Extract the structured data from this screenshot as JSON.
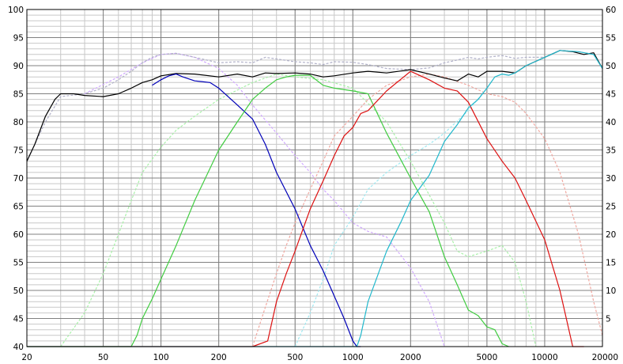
{
  "chart_data": {
    "type": "line",
    "title": "",
    "xlabel": "",
    "ylabel": "",
    "x_scale": "log",
    "xlim": [
      20,
      20000
    ],
    "ylim_left": [
      40,
      100
    ],
    "ylim_right": [
      0,
      60
    ],
    "grid": true,
    "legend": "none",
    "x_tick_labels": [
      "20",
      "50",
      "100",
      "200",
      "500",
      "1000",
      "2000",
      "5000",
      "10000",
      "20000"
    ],
    "x_tick_values": [
      20,
      50,
      100,
      200,
      500,
      1000,
      2000,
      5000,
      10000,
      20000
    ],
    "y_left_tick_labels": [
      "40",
      "45",
      "50",
      "55",
      "60",
      "65",
      "70",
      "75",
      "80",
      "85",
      "90",
      "95",
      "100"
    ],
    "y_left_tick_values": [
      40,
      45,
      50,
      55,
      60,
      65,
      70,
      75,
      80,
      85,
      90,
      95,
      100
    ],
    "y_right_tick_labels": [
      "5",
      "10",
      "15",
      "20",
      "25",
      "30",
      "35",
      "40",
      "45",
      "50",
      "55",
      "60"
    ],
    "y_right_tick_values": [
      5,
      10,
      15,
      20,
      25,
      30,
      35,
      40,
      45,
      50,
      55,
      60
    ],
    "series": [
      {
        "color": "#d0a8ff",
        "dashed": true,
        "x": [
          40,
          60,
          80,
          100,
          120,
          150,
          200,
          250,
          300,
          400,
          500,
          600,
          700,
          800,
          1000,
          1200,
          1500,
          2000,
          2500,
          3000
        ],
        "y": [
          85,
          88,
          90.5,
          92,
          92.2,
          91.5,
          89.5,
          86.5,
          83,
          78,
          74,
          71,
          68,
          66,
          62,
          60.5,
          59.5,
          54,
          48,
          40
        ]
      },
      {
        "color": "#a8f0a8",
        "dashed": true,
        "x": [
          30,
          40,
          50,
          60,
          70,
          80,
          100,
          120,
          150,
          200,
          300,
          400,
          500,
          700,
          1000,
          1500,
          2000,
          2500,
          3000,
          3500,
          4000,
          5000,
          6000,
          7000,
          8000,
          9000
        ],
        "y": [
          40,
          46,
          53,
          60,
          66,
          71,
          75.5,
          78.5,
          81,
          84,
          87,
          88.5,
          88,
          87.5,
          86,
          80,
          73,
          67,
          62,
          57,
          56,
          57,
          58,
          55,
          48,
          40
        ]
      },
      {
        "color": "#f0a8a0",
        "dashed": true,
        "x": [
          300,
          350,
          400,
          450,
          500,
          600,
          700,
          800,
          1000,
          1200,
          1500,
          2000,
          2500,
          3000,
          4000,
          5000,
          6000,
          7000,
          8000,
          10000,
          12000,
          15000,
          18000,
          20000
        ],
        "y": [
          40,
          47,
          53,
          58,
          62,
          68,
          73,
          77.5,
          81,
          84,
          86.5,
          88,
          88.5,
          88,
          86.5,
          85,
          84.5,
          83.5,
          81.5,
          77,
          71,
          60,
          48,
          42
        ]
      },
      {
        "color": "#a0e8f0",
        "dashed": true,
        "x": [
          500,
          600,
          700,
          800,
          1000,
          1200,
          1500,
          2000,
          2500,
          3000,
          4000,
          5000
        ],
        "y": [
          40,
          46,
          52,
          58,
          63,
          68,
          71,
          74,
          76,
          78,
          82,
          86
        ]
      },
      {
        "color": "#b0b0c8",
        "dashed": true,
        "x": [
          20,
          25,
          30,
          40,
          50,
          60,
          70,
          80,
          90,
          100,
          120,
          150,
          200,
          250,
          300,
          350,
          400,
          500,
          600,
          700,
          800,
          1000,
          1200,
          1500,
          2000,
          2500,
          3000,
          3500,
          4000,
          4500,
          5000,
          6000,
          7000,
          8000,
          10000,
          12000,
          15000,
          18000,
          20000
        ],
        "y": [
          73,
          80,
          84.5,
          85,
          86,
          87.5,
          89,
          90.5,
          91.5,
          92,
          92.2,
          91.5,
          90.5,
          90.7,
          90.5,
          91.5,
          91.2,
          90.7,
          90.5,
          90.2,
          90.7,
          90.6,
          90.2,
          89.5,
          89.3,
          89.6,
          90.5,
          91,
          91.5,
          91.2,
          91.5,
          91.8,
          91.3,
          91.5,
          91.5,
          92.7,
          92.5,
          92,
          89.5
        ]
      },
      {
        "color": "#000000",
        "dashed": false,
        "x": [
          20,
          22,
          25,
          28,
          30,
          35,
          40,
          50,
          60,
          70,
          80,
          90,
          100,
          120,
          150,
          200,
          250,
          300,
          350,
          400,
          500,
          600,
          700,
          800,
          1000,
          1200,
          1500,
          2000,
          2500,
          3000,
          3500,
          4000,
          4500,
          5000,
          6000,
          7000,
          8000,
          10000,
          12000,
          14000,
          16000,
          18000,
          20000
        ],
        "y": [
          73,
          76,
          81,
          84,
          85,
          85,
          84.7,
          84.5,
          85,
          86,
          87,
          87.5,
          88.2,
          88.6,
          88.5,
          88,
          88.5,
          88,
          88.7,
          88.6,
          88.7,
          88.5,
          88,
          88.2,
          88.7,
          89,
          88.7,
          89.3,
          88.5,
          87.8,
          87.3,
          88.5,
          88,
          89,
          89,
          88.7,
          90,
          91.5,
          92.7,
          92.5,
          92,
          92.3,
          89.5
        ]
      },
      {
        "color": "#0000b8",
        "dashed": false,
        "x": [
          90,
          100,
          110,
          120,
          130,
          150,
          180,
          200,
          250,
          300,
          350,
          400,
          500,
          600,
          700,
          800,
          900,
          1000,
          1050,
          1100
        ],
        "y": [
          86.5,
          87.5,
          88.2,
          88.5,
          88,
          87.3,
          87,
          86,
          83,
          80.5,
          76,
          71,
          64.5,
          58,
          53.5,
          49,
          45,
          41,
          40,
          40
        ]
      },
      {
        "color": "#40cc40",
        "dashed": false,
        "x": [
          20,
          70,
          75,
          80,
          90,
          100,
          120,
          150,
          200,
          250,
          300,
          350,
          400,
          450,
          500,
          600,
          700,
          800,
          1000,
          1200,
          1500,
          2000,
          2500,
          3000,
          3500,
          4000,
          4500,
          5000,
          5500,
          6000,
          6500
        ],
        "y": [
          40,
          40,
          42,
          45,
          48.5,
          52,
          58,
          66,
          75,
          80,
          84,
          86,
          87.5,
          88,
          88.3,
          88.3,
          86.5,
          86,
          85.5,
          85,
          78,
          70,
          64,
          56,
          51,
          46.5,
          45.5,
          43.5,
          43,
          40.5,
          40
        ]
      },
      {
        "color": "#dd1010",
        "dashed": false,
        "x": [
          20,
          300,
          360,
          400,
          450,
          500,
          600,
          700,
          800,
          900,
          1000,
          1100,
          1200,
          1500,
          2000,
          2500,
          3000,
          3500,
          4000,
          5000,
          6000,
          7000,
          8000,
          10000,
          12000,
          14000,
          16000
        ],
        "y": [
          40,
          40,
          41,
          48,
          53,
          57,
          64.5,
          69.5,
          74,
          77.5,
          79,
          81.5,
          82,
          85.5,
          89,
          87.5,
          86,
          85.5,
          83.5,
          77,
          73,
          70,
          66,
          59,
          50,
          40,
          40
        ]
      },
      {
        "color": "#20b8cc",
        "dashed": false,
        "x": [
          20,
          1050,
          1100,
          1200,
          1500,
          1800,
          2000,
          2500,
          3000,
          3500,
          4000,
          4500,
          5000,
          5500,
          6000,
          6500,
          7000,
          8000,
          10000,
          12000,
          15000,
          18000,
          20000
        ],
        "y": [
          40,
          40,
          42,
          48,
          57,
          62.5,
          66,
          70.5,
          76.5,
          79.5,
          82.5,
          84,
          86,
          88,
          88.5,
          88.3,
          88.7,
          90,
          91.5,
          92.7,
          92.5,
          92,
          89.5
        ]
      }
    ]
  }
}
